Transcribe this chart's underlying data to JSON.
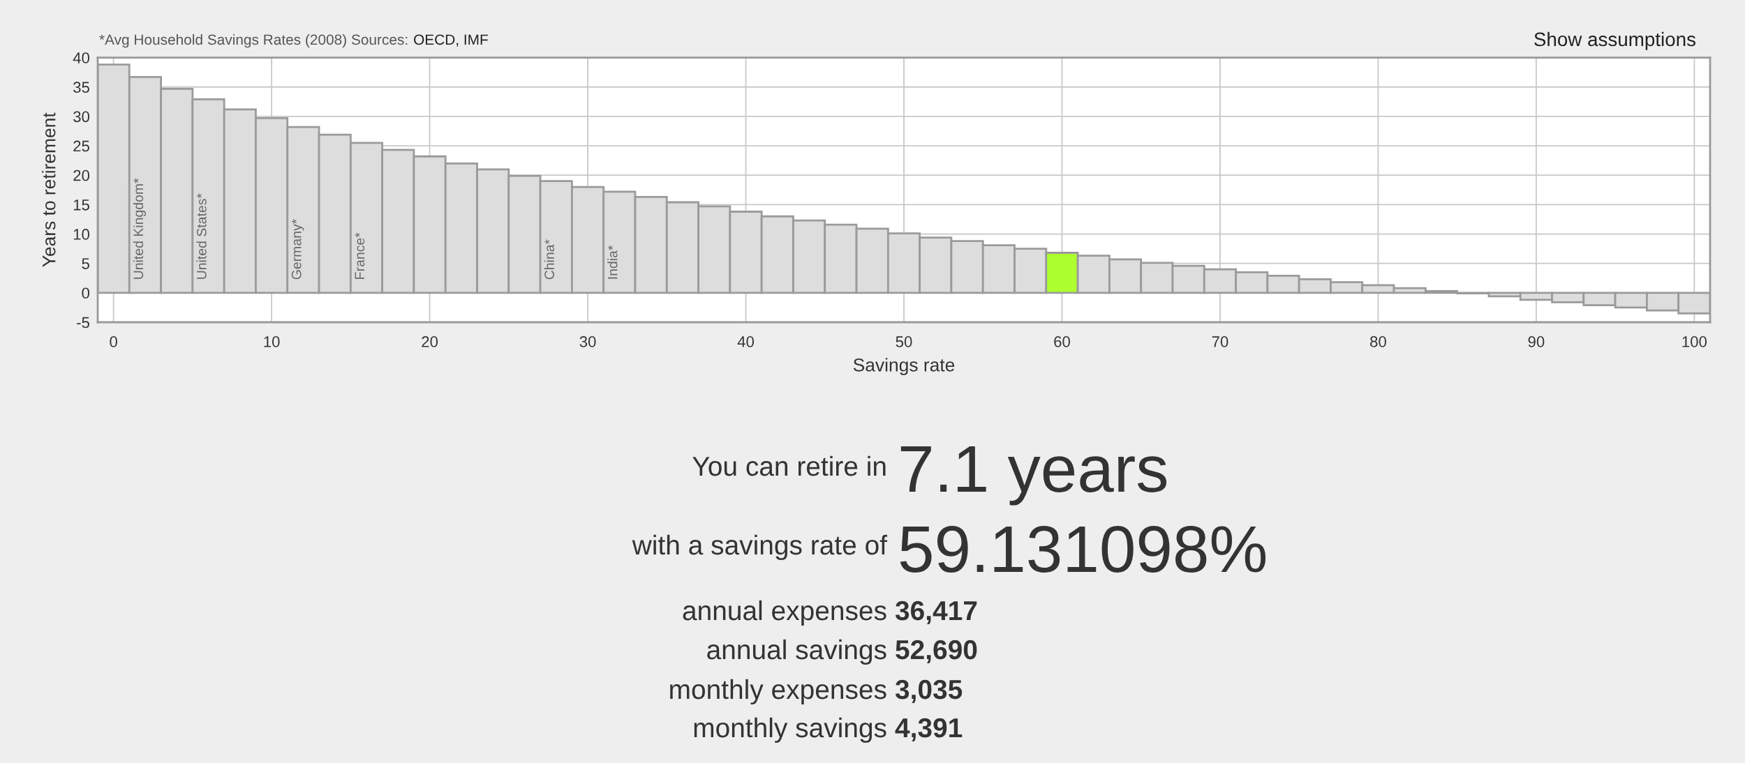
{
  "chart_data": {
    "type": "bar",
    "xlabel": "Savings rate",
    "ylabel": "Years to retirement",
    "x": [
      0,
      2,
      4,
      6,
      8,
      10,
      12,
      14,
      16,
      18,
      20,
      22,
      24,
      26,
      28,
      30,
      32,
      34,
      36,
      38,
      40,
      42,
      44,
      46,
      48,
      50,
      52,
      54,
      56,
      58,
      60,
      62,
      64,
      66,
      68,
      70,
      72,
      74,
      76,
      78,
      80,
      82,
      84,
      86,
      88,
      90,
      92,
      94,
      96,
      98,
      100
    ],
    "values": [
      38.8,
      36.7,
      34.7,
      32.9,
      31.2,
      29.7,
      28.2,
      26.9,
      25.5,
      24.3,
      23.2,
      22.0,
      21.0,
      19.9,
      19.0,
      18.0,
      17.2,
      16.3,
      15.4,
      14.7,
      13.8,
      13.0,
      12.3,
      11.6,
      10.9,
      10.1,
      9.4,
      8.8,
      8.1,
      7.5,
      6.8,
      6.3,
      5.7,
      5.1,
      4.6,
      4.0,
      3.5,
      2.9,
      2.3,
      1.8,
      1.3,
      0.8,
      0.3,
      -0.1,
      -0.6,
      -1.2,
      -1.6,
      -2.1,
      -2.5,
      -3.0,
      -3.5
    ],
    "colors": [
      "#dddddd",
      "#dddddd",
      "#dddddd",
      "#dddddd",
      "#dddddd",
      "#dddddd",
      "#dddddd",
      "#dddddd",
      "#dddddd",
      "#dddddd",
      "#dddddd",
      "#dddddd",
      "#dddddd",
      "#dddddd",
      "#dddddd",
      "#dddddd",
      "#dddddd",
      "#dddddd",
      "#dddddd",
      "#dddddd",
      "#dddddd",
      "#dddddd",
      "#dddddd",
      "#dddddd",
      "#dddddd",
      "#dddddd",
      "#dddddd",
      "#dddddd",
      "#dddddd",
      "#dddddd",
      "#adff2f",
      "#dddddd",
      "#dddddd",
      "#dddddd",
      "#dddddd",
      "#dddddd",
      "#dddddd",
      "#dddddd",
      "#dddddd",
      "#dddddd",
      "#dddddd",
      "#dddddd",
      "#dddddd",
      "#dddddd",
      "#dddddd",
      "#dddddd",
      "#dddddd",
      "#dddddd",
      "#dddddd",
      "#dddddd",
      "#dddddd"
    ],
    "xlim": [
      -1,
      101
    ],
    "ylim": [
      -5,
      40
    ],
    "xticks": [
      0,
      10,
      20,
      30,
      40,
      50,
      60,
      70,
      80,
      90,
      100
    ],
    "yticks": [
      -5,
      0,
      5,
      10,
      15,
      20,
      25,
      30,
      35,
      40
    ],
    "grid": true,
    "annotations": [
      "*Avg Household Savings Rates (2008) Sources:",
      "OECD, IMF",
      "Show assumptions",
      {
        "text": "United Kingdom*",
        "x": 1,
        "y": 2.2
      },
      {
        "text": "United States*",
        "x": 5,
        "y": 2.2
      },
      {
        "text": "Germany*",
        "x": 11,
        "y": 2.2
      },
      {
        "text": "France*",
        "x": 15,
        "y": 2.2
      },
      {
        "text": "China*",
        "x": 27,
        "y": 2.2
      },
      {
        "text": "India*",
        "x": 31,
        "y": 2.2
      },
      "You can retire in",
      "7.1 years",
      "with a savings rate of",
      "59.131098%",
      "annual expenses",
      "36,417",
      "annual savings",
      "52,690",
      "monthly expenses",
      "3,035",
      "monthly savings",
      "4,391"
    ]
  }
}
